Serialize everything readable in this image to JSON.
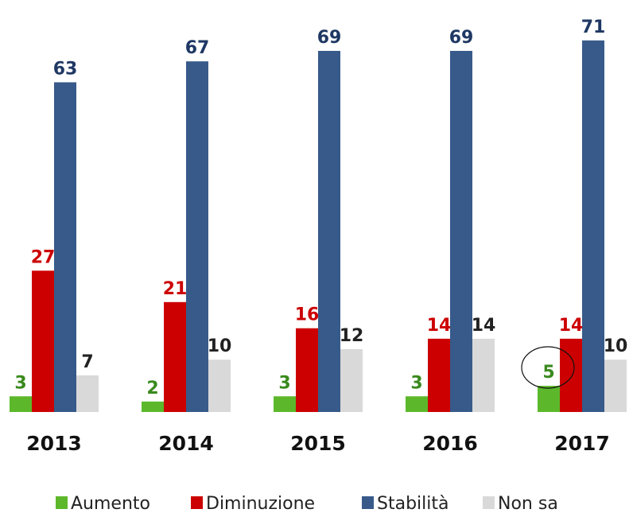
{
  "chart_data": {
    "type": "bar",
    "categories": [
      "2013",
      "2014",
      "2015",
      "2016",
      "2017"
    ],
    "series": [
      {
        "name": "Aumento",
        "color": "#5cb82a",
        "label_color": "#3a8a1e",
        "values": [
          3,
          2,
          3,
          3,
          5
        ]
      },
      {
        "name": "Diminuzione",
        "color": "#cc0000",
        "label_color": "#cc0000",
        "values": [
          27,
          21,
          16,
          14,
          14
        ]
      },
      {
        "name": "Stabilità",
        "color": "#375a8a",
        "label_color": "#1f3864",
        "values": [
          63,
          67,
          69,
          69,
          71
        ]
      },
      {
        "name": "Non sa",
        "color": "#d9d9d9",
        "label_color": "#222222",
        "values": [
          7,
          10,
          12,
          14,
          10
        ]
      }
    ],
    "legend": "bottom"
  }
}
